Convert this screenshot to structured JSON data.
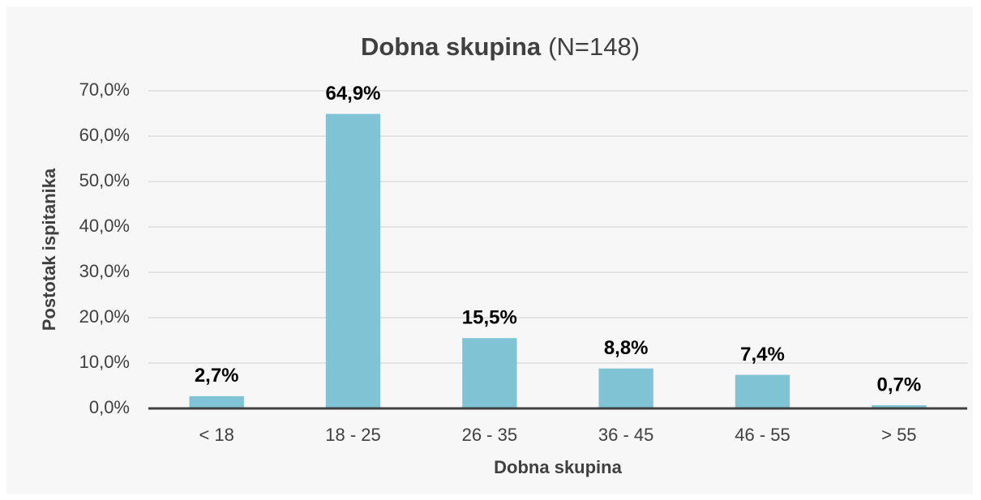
{
  "chart_data": {
    "type": "bar",
    "title": "Dobna skupina",
    "subtitle": "(N=148)",
    "x_label": "Dobna skupina",
    "y_label": "Postotak ispitanika",
    "categories": [
      "< 18",
      "18 - 25",
      "26 - 35",
      "36 - 45",
      "46 - 55",
      "> 55"
    ],
    "values": [
      2.7,
      64.9,
      15.5,
      8.8,
      7.4,
      0.7
    ],
    "value_labels": [
      "2,7%",
      "64,9%",
      "15,5%",
      "8,8%",
      "7,4%",
      "0,7%"
    ],
    "color": "#7fc3d5",
    "ylim": [
      0,
      70
    ],
    "yticks": [
      {
        "value": 0,
        "label": "0,0%"
      },
      {
        "value": 10,
        "label": "10,0%"
      },
      {
        "value": 20,
        "label": "20,0%"
      },
      {
        "value": 30,
        "label": "30,0%"
      },
      {
        "value": 40,
        "label": "40,0%"
      },
      {
        "value": 50,
        "label": "50,0%"
      },
      {
        "value": 60,
        "label": "60,0%"
      },
      {
        "value": 70,
        "label": "70,0%"
      }
    ],
    "grid": true
  }
}
